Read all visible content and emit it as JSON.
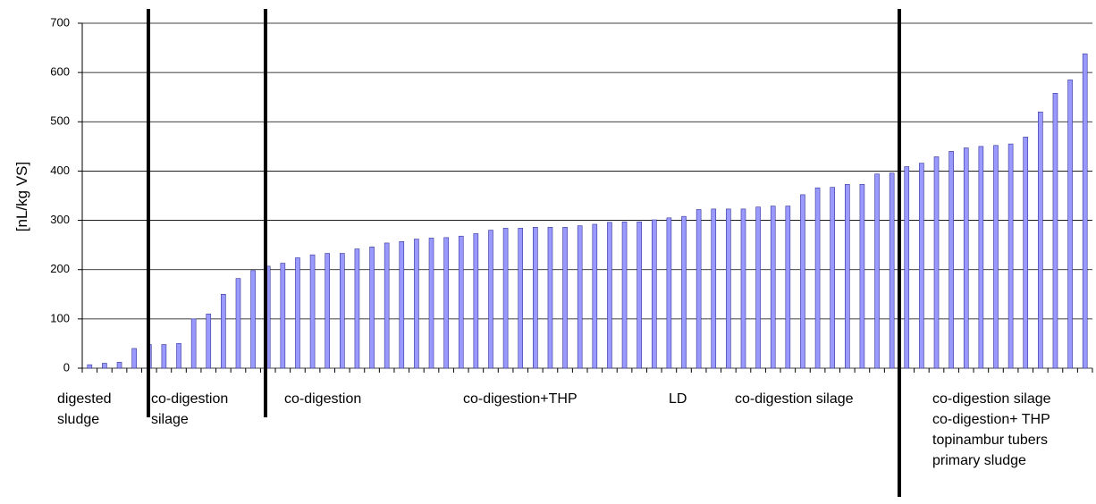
{
  "chart_data": {
    "type": "bar",
    "y_label": "[nL/kg VS]",
    "values": [
      7,
      10,
      12,
      40,
      48,
      48,
      50,
      100,
      110,
      150,
      182,
      198,
      207,
      213,
      224,
      230,
      233,
      233,
      242,
      246,
      254,
      257,
      262,
      264,
      265,
      268,
      273,
      280,
      284,
      284,
      286,
      286,
      286,
      289,
      292,
      296,
      297,
      297,
      301,
      305,
      308,
      322,
      323,
      323,
      323,
      327,
      329,
      329,
      352,
      366,
      367,
      373,
      373,
      394,
      396,
      409,
      416,
      429,
      440,
      447,
      450,
      452,
      455,
      469,
      520,
      558,
      585,
      638
    ],
    "color": "#9999ff",
    "ylim": [
      0,
      700
    ],
    "yticks": [
      0,
      100,
      200,
      300,
      400,
      500,
      600,
      700
    ],
    "grid": true,
    "group_labels": [
      [
        "digested",
        "sludge"
      ],
      [
        "co-digestion",
        "silage"
      ],
      [
        "co-digestion"
      ],
      [
        "co-digestion+THP"
      ],
      [
        "LD"
      ],
      [
        "co-digestion silage"
      ],
      [
        "co-digestion silage",
        "co-digestion+ THP",
        "topinambur tubers",
        "primary sludge"
      ]
    ]
  }
}
